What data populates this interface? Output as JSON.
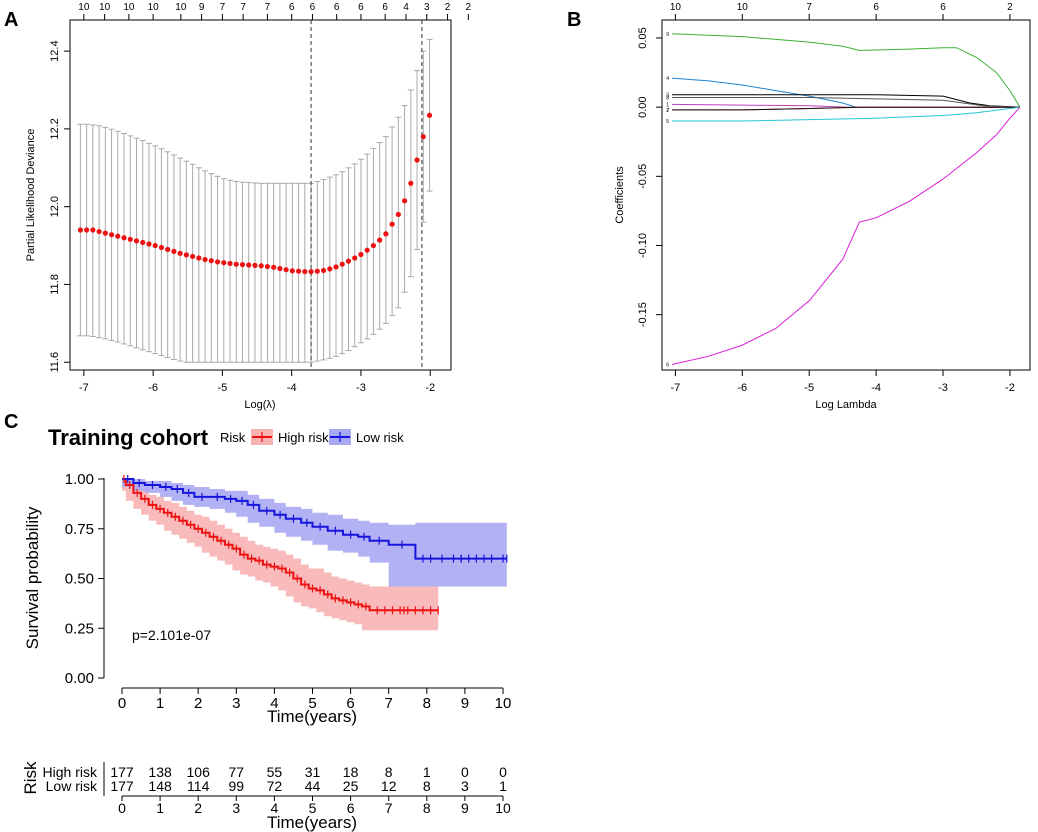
{
  "panels": {
    "a": "A",
    "b": "B",
    "c": "C"
  },
  "chart_data": [
    {
      "panel": "A",
      "type": "scatter",
      "subtype": "cross-validation error bars",
      "xlabel": "Log(λ)",
      "ylabel": "Partial Likelihood Deviance",
      "xlim": [
        -7.2,
        -1.7
      ],
      "ylim": [
        11.58,
        12.48
      ],
      "xticks": [
        "-7",
        "-6",
        "-5",
        "-4",
        "-3",
        "-2"
      ],
      "yticks": [
        "11.6",
        "11.8",
        "12.0",
        "12.2",
        "12.4"
      ],
      "top_axis_labels": [
        "10",
        "10",
        "10",
        "10",
        "10",
        "9",
        "7",
        "7",
        "7",
        "6",
        "6",
        "6",
        "6",
        "6",
        "4",
        "3",
        "2",
        "2"
      ],
      "top_axis_positions": [
        -7.0,
        -6.7,
        -6.35,
        -6.0,
        -5.6,
        -5.3,
        -5.0,
        -4.7,
        -4.35,
        -4.0,
        -3.7,
        -3.35,
        -3.0,
        -2.65,
        -2.35,
        -2.05,
        -1.75,
        -1.45
      ],
      "vlines": [
        -3.72,
        -2.12
      ],
      "x_start": -7.05,
      "x_step": 0.09,
      "values": [
        11.94,
        11.94,
        11.94,
        11.936,
        11.932,
        11.928,
        11.924,
        11.92,
        11.916,
        11.912,
        11.908,
        11.904,
        11.9,
        11.895,
        11.89,
        11.885,
        11.88,
        11.876,
        11.872,
        11.868,
        11.864,
        11.861,
        11.858,
        11.856,
        11.854,
        11.852,
        11.851,
        11.85,
        11.849,
        11.848,
        11.846,
        11.844,
        11.841,
        11.838,
        11.835,
        11.834,
        11.833,
        11.833,
        11.834,
        11.836,
        11.84,
        11.845,
        11.852,
        11.86,
        11.868,
        11.877,
        11.888,
        11.9,
        11.914,
        11.93,
        11.955,
        11.98,
        12.015,
        12.06,
        12.12,
        12.18,
        12.235
      ],
      "upper": [
        12.212,
        12.212,
        12.21,
        12.208,
        12.204,
        12.199,
        12.194,
        12.188,
        12.182,
        12.176,
        12.17,
        12.163,
        12.156,
        12.149,
        12.141,
        12.133,
        12.125,
        12.117,
        12.109,
        12.1,
        12.092,
        12.085,
        12.078,
        12.072,
        12.068,
        12.065,
        12.063,
        12.062,
        12.061,
        12.06,
        12.06,
        12.06,
        12.06,
        12.06,
        12.06,
        12.06,
        12.06,
        12.06,
        12.065,
        12.07,
        12.076,
        12.082,
        12.09,
        12.1,
        12.11,
        12.122,
        12.135,
        12.15,
        12.165,
        12.18,
        12.205,
        12.23,
        12.26,
        12.3,
        12.35,
        12.4,
        12.43
      ],
      "lower": [
        11.668,
        11.668,
        11.666,
        11.663,
        11.66,
        11.656,
        11.652,
        11.647,
        11.642,
        11.637,
        11.632,
        11.627,
        11.622,
        11.617,
        11.612,
        11.607,
        11.603,
        11.6,
        11.6,
        11.6,
        11.6,
        11.6,
        11.6,
        11.6,
        11.6,
        11.6,
        11.6,
        11.6,
        11.6,
        11.6,
        11.6,
        11.6,
        11.6,
        11.6,
        11.6,
        11.6,
        11.6,
        11.6,
        11.603,
        11.606,
        11.61,
        11.615,
        11.622,
        11.63,
        11.64,
        11.65,
        11.66,
        11.672,
        11.685,
        11.7,
        11.72,
        11.74,
        11.78,
        11.82,
        11.89,
        11.96,
        12.04
      ]
    },
    {
      "panel": "B",
      "type": "line",
      "xlabel": "Log Lambda",
      "ylabel": "Coefficients",
      "xlim": [
        -7.2,
        -1.7
      ],
      "ylim": [
        -0.19,
        0.063
      ],
      "xticks": [
        "-7",
        "-6",
        "-5",
        "-4",
        "-3",
        "-2"
      ],
      "yticks": [
        "0.05",
        "0.00",
        "-0.05",
        "-0.10",
        "-0.15"
      ],
      "top_axis_labels": [
        "10",
        "10",
        "7",
        "6",
        "6",
        "2"
      ],
      "top_axis_positions": [
        -7.0,
        -6.0,
        -5.0,
        -4.0,
        -3.0,
        -2.0
      ],
      "series": [
        {
          "name": "9",
          "color": "#3cb031",
          "x": [
            -7.05,
            -6.5,
            -6.0,
            -5.5,
            -5.0,
            -4.5,
            -4.25,
            -3.5,
            -3.0,
            -2.8,
            -2.5,
            -2.2,
            -2.0,
            -1.85
          ],
          "y": [
            0.053,
            0.052,
            0.051,
            0.049,
            0.047,
            0.044,
            0.041,
            0.042,
            0.043,
            0.043,
            0.036,
            0.025,
            0.012,
            0.0
          ]
        },
        {
          "name": "4",
          "color": "#1e84d0",
          "x": [
            -7.05,
            -6.5,
            -6.0,
            -5.5,
            -5.0,
            -4.5,
            -4.3
          ],
          "y": [
            0.021,
            0.019,
            0.016,
            0.012,
            0.008,
            0.003,
            0.0
          ]
        },
        {
          "name": "3",
          "color": "#000000",
          "x": [
            -7.05,
            -5.0,
            -4.0,
            -3.0,
            -2.6,
            -2.3,
            -1.85
          ],
          "y": [
            0.009,
            0.009,
            0.009,
            0.008,
            0.003,
            0.001,
            0.0
          ]
        },
        {
          "name": "8",
          "color": "#555555",
          "x": [
            -7.05,
            -5.0,
            -4.0,
            -3.0,
            -2.4,
            -1.85
          ],
          "y": [
            0.007,
            0.007,
            0.006,
            0.005,
            0.001,
            0.0
          ]
        },
        {
          "name": "1",
          "color": "#c040c0",
          "x": [
            -7.05,
            -6.0,
            -5.0,
            -4.4,
            -4.0,
            -1.85
          ],
          "y": [
            0.002,
            0.0015,
            0.001,
            0.0,
            0.0,
            0.0
          ]
        },
        {
          "name": "2",
          "color": "#e03030",
          "x": [
            -7.05,
            -6.0,
            -5.0,
            -4.2,
            -1.85
          ],
          "y": [
            -0.002,
            -0.002,
            -0.001,
            0.0,
            0.0
          ]
        },
        {
          "name": "7",
          "color": "#111111",
          "x": [
            -7.05,
            -6.0,
            -5.0,
            -4.3,
            -1.85
          ],
          "y": [
            -0.002,
            -0.002,
            -0.001,
            0.0,
            0.0
          ]
        },
        {
          "name": "5",
          "color": "#27c6d4",
          "x": [
            -7.05,
            -6.0,
            -5.0,
            -4.0,
            -3.0,
            -2.5,
            -2.0,
            -1.85
          ],
          "y": [
            -0.01,
            -0.01,
            -0.009,
            -0.008,
            -0.006,
            -0.004,
            -0.001,
            0.0
          ]
        },
        {
          "name": "6",
          "color": "#d91ed9",
          "x": [
            -7.05,
            -6.5,
            -6.0,
            -5.5,
            -5.0,
            -4.5,
            -4.25,
            -4.0,
            -3.5,
            -3.0,
            -2.5,
            -2.2,
            -2.0,
            -1.85
          ],
          "y": [
            -0.186,
            -0.18,
            -0.172,
            -0.16,
            -0.14,
            -0.11,
            -0.083,
            -0.08,
            -0.068,
            -0.052,
            -0.033,
            -0.02,
            -0.008,
            0.0
          ]
        }
      ]
    },
    {
      "panel": "C",
      "type": "line",
      "subtype": "kaplan-meier",
      "title": "Training cohort",
      "legend_title": "Risk",
      "xlabel": "Time(years)",
      "ylabel": "Survival probability",
      "xlim": [
        -0.3,
        10.3
      ],
      "ylim": [
        0,
        1.02
      ],
      "xticks": [
        "0",
        "1",
        "2",
        "3",
        "4",
        "5",
        "6",
        "7",
        "8",
        "9",
        "10"
      ],
      "yticks": [
        "0.00",
        "0.25",
        "0.50",
        "0.75",
        "1.00"
      ],
      "annotation": "p=2.101e-07",
      "series": [
        {
          "name": "High risk",
          "color": "#ee1111",
          "fill": "#f7b2b2",
          "x": [
            0,
            0.1,
            0.3,
            0.5,
            0.7,
            0.9,
            1.1,
            1.3,
            1.5,
            1.7,
            1.9,
            2.1,
            2.3,
            2.5,
            2.7,
            2.9,
            3.1,
            3.3,
            3.5,
            3.7,
            3.9,
            4.1,
            4.3,
            4.5,
            4.7,
            4.9,
            5.1,
            5.3,
            5.5,
            5.7,
            5.9,
            6.1,
            6.3,
            6.5,
            8.3
          ],
          "y": [
            1.0,
            0.97,
            0.93,
            0.9,
            0.87,
            0.85,
            0.83,
            0.81,
            0.79,
            0.77,
            0.75,
            0.73,
            0.71,
            0.69,
            0.67,
            0.65,
            0.62,
            0.6,
            0.59,
            0.57,
            0.56,
            0.55,
            0.53,
            0.5,
            0.47,
            0.45,
            0.44,
            0.42,
            0.4,
            0.39,
            0.38,
            0.37,
            0.36,
            0.34,
            0.34
          ],
          "lower": [
            1.0,
            0.94,
            0.89,
            0.85,
            0.82,
            0.79,
            0.77,
            0.74,
            0.72,
            0.7,
            0.68,
            0.66,
            0.63,
            0.61,
            0.59,
            0.57,
            0.54,
            0.52,
            0.51,
            0.49,
            0.48,
            0.46,
            0.44,
            0.41,
            0.38,
            0.36,
            0.35,
            0.33,
            0.31,
            0.3,
            0.29,
            0.28,
            0.27,
            0.24,
            0.24
          ],
          "upper": [
            1.0,
            0.99,
            0.97,
            0.95,
            0.92,
            0.91,
            0.89,
            0.88,
            0.86,
            0.84,
            0.82,
            0.81,
            0.79,
            0.77,
            0.75,
            0.73,
            0.71,
            0.69,
            0.67,
            0.66,
            0.65,
            0.64,
            0.62,
            0.6,
            0.57,
            0.55,
            0.55,
            0.53,
            0.51,
            0.5,
            0.49,
            0.48,
            0.47,
            0.46,
            0.46
          ]
        },
        {
          "name": "Low risk",
          "color": "#1515dd",
          "fill": "#a9a9f2",
          "x": [
            0,
            0.3,
            0.6,
            1.0,
            1.3,
            1.6,
            1.9,
            2.3,
            2.7,
            3.0,
            3.3,
            3.6,
            4.0,
            4.3,
            4.7,
            5.0,
            5.4,
            5.8,
            6.2,
            6.5,
            7.0,
            7.7,
            10.1
          ],
          "y": [
            1.0,
            0.98,
            0.97,
            0.96,
            0.95,
            0.93,
            0.91,
            0.91,
            0.9,
            0.89,
            0.87,
            0.84,
            0.82,
            0.8,
            0.78,
            0.76,
            0.74,
            0.72,
            0.71,
            0.69,
            0.67,
            0.6,
            0.6
          ],
          "lower": [
            1.0,
            0.96,
            0.94,
            0.93,
            0.91,
            0.89,
            0.87,
            0.86,
            0.85,
            0.83,
            0.81,
            0.78,
            0.76,
            0.73,
            0.71,
            0.69,
            0.67,
            0.64,
            0.63,
            0.61,
            0.58,
            0.46,
            0.46
          ],
          "upper": [
            1.0,
            1.0,
            0.99,
            0.99,
            0.98,
            0.97,
            0.96,
            0.95,
            0.94,
            0.94,
            0.92,
            0.9,
            0.88,
            0.86,
            0.85,
            0.83,
            0.82,
            0.8,
            0.79,
            0.78,
            0.77,
            0.78,
            0.78
          ]
        }
      ],
      "risk_table": {
        "title": "Risk",
        "times": [
          "0",
          "1",
          "2",
          "3",
          "4",
          "5",
          "6",
          "7",
          "8",
          "9",
          "10"
        ],
        "xlabel": "Time(years)",
        "rows": [
          {
            "name": "High risk",
            "color": "#ee1111",
            "values": [
              "177",
              "138",
              "106",
              "77",
              "55",
              "31",
              "18",
              "8",
              "1",
              "0",
              "0"
            ]
          },
          {
            "name": "Low risk",
            "color": "#1515dd",
            "values": [
              "177",
              "148",
              "114",
              "99",
              "72",
              "44",
              "25",
              "12",
              "8",
              "3",
              "1"
            ]
          }
        ]
      }
    }
  ]
}
